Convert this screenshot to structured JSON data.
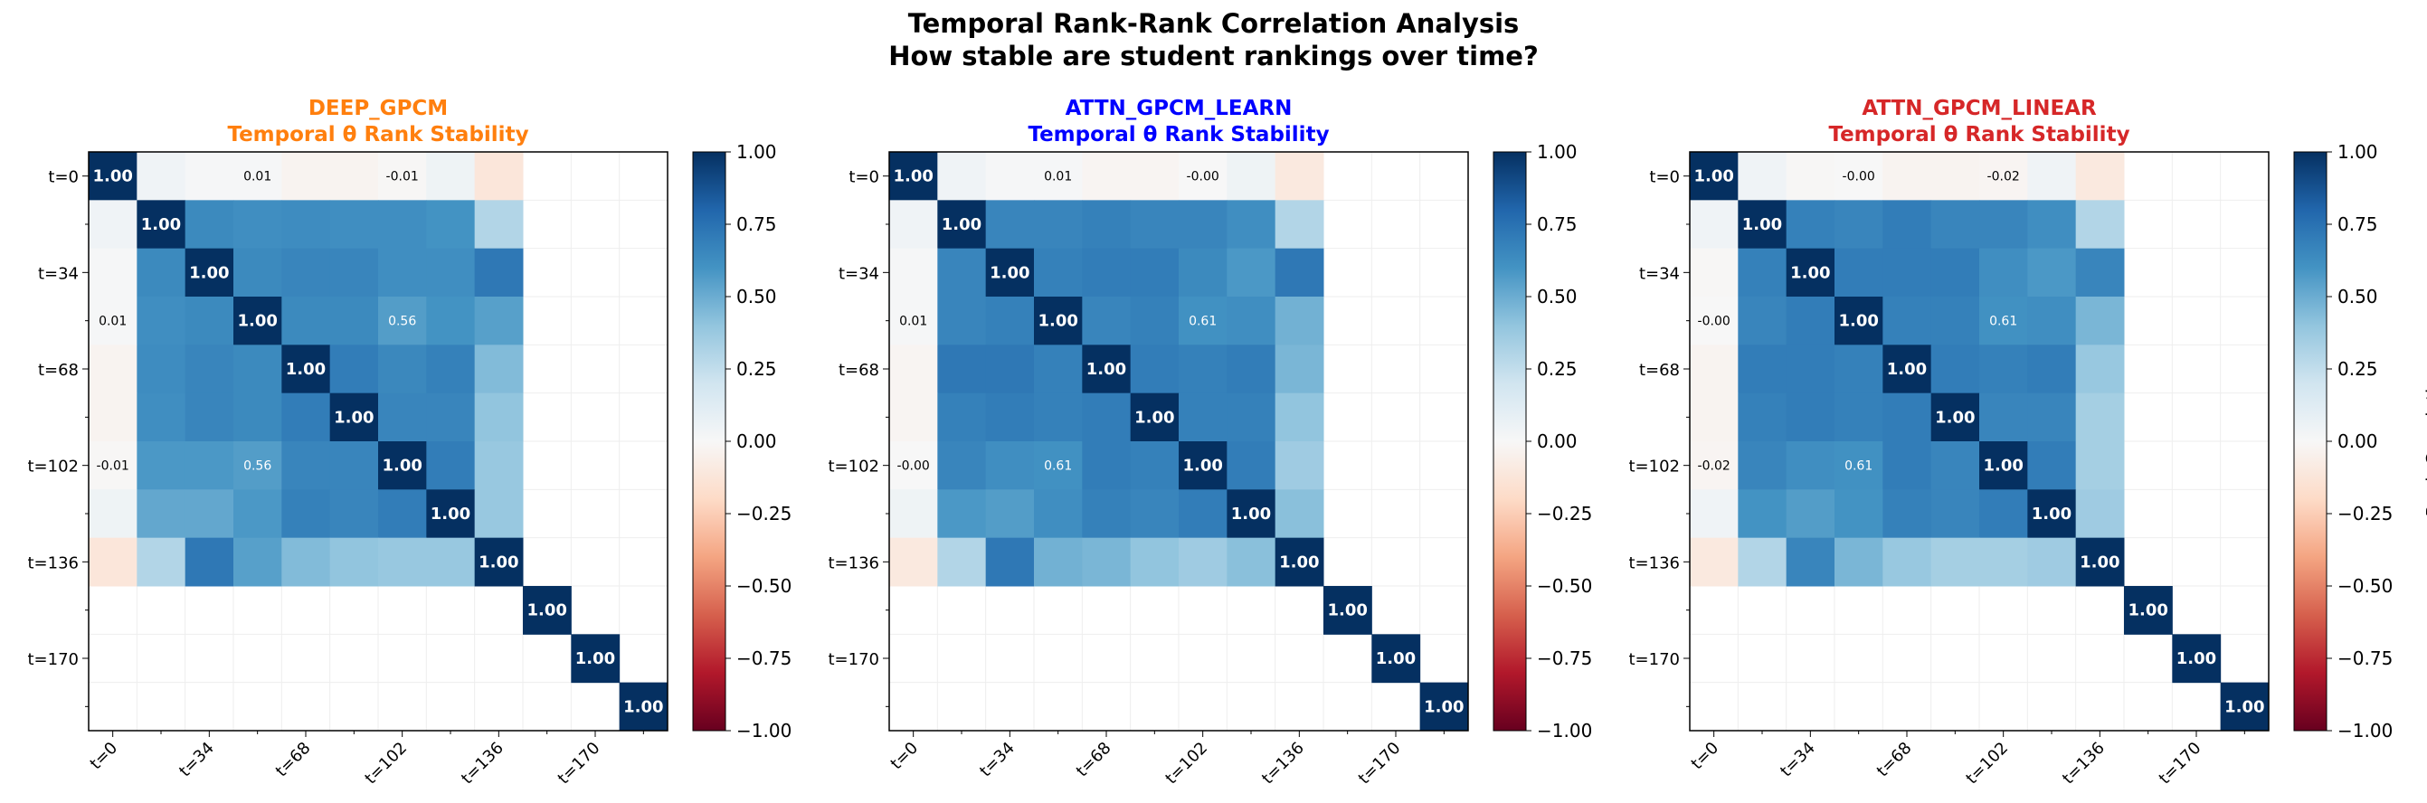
{
  "suptitle": {
    "line1": "Temporal Rank-Rank Correlation Analysis",
    "line2": "How stable are student rankings over time?"
  },
  "colorbar": {
    "ticks": [
      "1.00",
      "0.75",
      "0.50",
      "0.25",
      "0.00",
      "−0.25",
      "−0.50",
      "−0.75",
      "−1.00"
    ],
    "label": "Rank Correlation",
    "vmin": -1,
    "vmax": 1,
    "colormap": "RdBu"
  },
  "chart_data": [
    {
      "type": "heatmap",
      "title": "DEEP_GPCM",
      "subtitle": "Temporal θ Rank Stability",
      "title_color": "#ff7f0e",
      "ytick_labels": [
        "t=0",
        "t=34",
        "t=68",
        "t=102",
        "t=136",
        "t=170"
      ],
      "xtick_labels": [
        "t=0",
        "t=34",
        "t=68",
        "t=102",
        "t=136",
        "t=170"
      ],
      "tick_indices": [
        0,
        2,
        4,
        6,
        8,
        10
      ],
      "vmin": -1,
      "vmax": 1,
      "matrix": [
        [
          1.0,
          0.04,
          0.01,
          0.01,
          -0.03,
          -0.03,
          -0.01,
          0.05,
          -0.12,
          null,
          null,
          null
        ],
        [
          0.04,
          1.0,
          0.64,
          0.62,
          0.63,
          0.62,
          0.62,
          0.6,
          0.3,
          null,
          null,
          null
        ],
        [
          0.01,
          0.64,
          1.0,
          0.64,
          0.66,
          0.66,
          0.62,
          0.62,
          0.72,
          null,
          null,
          null
        ],
        [
          0.01,
          0.62,
          0.64,
          1.0,
          0.64,
          0.64,
          0.56,
          0.6,
          0.55,
          null,
          null,
          null
        ],
        [
          -0.03,
          0.63,
          0.66,
          0.64,
          1.0,
          0.7,
          0.65,
          0.68,
          0.44,
          null,
          null,
          null
        ],
        [
          -0.03,
          0.62,
          0.66,
          0.64,
          0.7,
          1.0,
          0.66,
          0.66,
          0.4,
          null,
          null,
          null
        ],
        [
          -0.01,
          0.58,
          0.58,
          0.56,
          0.66,
          0.66,
          1.0,
          0.7,
          0.38,
          null,
          null,
          null
        ],
        [
          0.05,
          0.52,
          0.52,
          0.58,
          0.68,
          0.66,
          0.7,
          1.0,
          0.38,
          null,
          null,
          null
        ],
        [
          -0.12,
          0.3,
          0.72,
          0.55,
          0.44,
          0.4,
          0.38,
          0.38,
          1.0,
          null,
          null,
          null
        ],
        [
          null,
          null,
          null,
          null,
          null,
          null,
          null,
          null,
          null,
          1.0,
          null,
          null
        ],
        [
          null,
          null,
          null,
          null,
          null,
          null,
          null,
          null,
          null,
          null,
          1.0,
          null
        ],
        [
          null,
          null,
          null,
          null,
          null,
          null,
          null,
          null,
          null,
          null,
          null,
          1.0
        ]
      ],
      "annotated_cells": [
        [
          0,
          0
        ],
        [
          1,
          1
        ],
        [
          2,
          2
        ],
        [
          3,
          3
        ],
        [
          4,
          4
        ],
        [
          5,
          5
        ],
        [
          6,
          6
        ],
        [
          7,
          7
        ],
        [
          8,
          8
        ],
        [
          9,
          9
        ],
        [
          10,
          10
        ],
        [
          11,
          11
        ],
        [
          0,
          3
        ],
        [
          0,
          6
        ],
        [
          3,
          0
        ],
        [
          6,
          0
        ],
        [
          3,
          6
        ],
        [
          6,
          3
        ]
      ]
    },
    {
      "type": "heatmap",
      "title": "ATTN_GPCM_LEARN",
      "subtitle": "Temporal θ Rank Stability",
      "title_color": "#0000ff",
      "ytick_labels": [
        "t=0",
        "t=34",
        "t=68",
        "t=102",
        "t=136",
        "t=170"
      ],
      "xtick_labels": [
        "t=0",
        "t=34",
        "t=68",
        "t=102",
        "t=136",
        "t=170"
      ],
      "tick_indices": [
        0,
        2,
        4,
        6,
        8,
        10
      ],
      "vmin": -1,
      "vmax": 1,
      "matrix": [
        [
          1.0,
          0.04,
          0.01,
          0.01,
          -0.02,
          -0.02,
          -0.0,
          0.05,
          -0.1,
          null,
          null,
          null
        ],
        [
          0.04,
          1.0,
          0.66,
          0.66,
          0.68,
          0.66,
          0.66,
          0.62,
          0.3,
          null,
          null,
          null
        ],
        [
          0.01,
          0.66,
          1.0,
          0.68,
          0.7,
          0.7,
          0.64,
          0.58,
          0.72,
          null,
          null,
          null
        ],
        [
          0.01,
          0.66,
          0.68,
          1.0,
          0.66,
          0.68,
          0.61,
          0.62,
          0.48,
          null,
          null,
          null
        ],
        [
          -0.02,
          0.72,
          0.72,
          0.68,
          1.0,
          0.7,
          0.68,
          0.7,
          0.46,
          null,
          null,
          null
        ],
        [
          -0.02,
          0.68,
          0.7,
          0.68,
          0.7,
          1.0,
          0.68,
          0.68,
          0.4,
          null,
          null,
          null
        ],
        [
          -0.0,
          0.66,
          0.62,
          0.61,
          0.7,
          0.68,
          1.0,
          0.7,
          0.36,
          null,
          null,
          null
        ],
        [
          0.05,
          0.58,
          0.56,
          0.62,
          0.68,
          0.66,
          0.7,
          1.0,
          0.42,
          null,
          null,
          null
        ],
        [
          -0.1,
          0.3,
          0.72,
          0.48,
          0.46,
          0.4,
          0.36,
          0.42,
          1.0,
          null,
          null,
          null
        ],
        [
          null,
          null,
          null,
          null,
          null,
          null,
          null,
          null,
          null,
          1.0,
          null,
          null
        ],
        [
          null,
          null,
          null,
          null,
          null,
          null,
          null,
          null,
          null,
          null,
          1.0,
          null
        ],
        [
          null,
          null,
          null,
          null,
          null,
          null,
          null,
          null,
          null,
          null,
          null,
          1.0
        ]
      ],
      "annotated_cells": [
        [
          0,
          0
        ],
        [
          1,
          1
        ],
        [
          2,
          2
        ],
        [
          3,
          3
        ],
        [
          4,
          4
        ],
        [
          5,
          5
        ],
        [
          6,
          6
        ],
        [
          7,
          7
        ],
        [
          8,
          8
        ],
        [
          9,
          9
        ],
        [
          10,
          10
        ],
        [
          11,
          11
        ],
        [
          0,
          3
        ],
        [
          0,
          6
        ],
        [
          3,
          0
        ],
        [
          6,
          0
        ],
        [
          3,
          6
        ],
        [
          6,
          3
        ]
      ]
    },
    {
      "type": "heatmap",
      "title": "ATTN_GPCM_LINEAR",
      "subtitle": "Temporal θ Rank Stability",
      "title_color": "#d62728",
      "ytick_labels": [
        "t=0",
        "t=34",
        "t=68",
        "t=102",
        "t=136",
        "t=170"
      ],
      "xtick_labels": [
        "t=0",
        "t=34",
        "t=68",
        "t=102",
        "t=136",
        "t=170"
      ],
      "tick_indices": [
        0,
        2,
        4,
        6,
        8,
        10
      ],
      "vmin": -1,
      "vmax": 1,
      "matrix": [
        [
          1.0,
          0.04,
          -0.01,
          -0.0,
          -0.03,
          -0.03,
          -0.02,
          0.04,
          -0.1,
          null,
          null,
          null
        ],
        [
          0.04,
          1.0,
          0.68,
          0.66,
          0.7,
          0.66,
          0.66,
          0.62,
          0.3,
          null,
          null,
          null
        ],
        [
          -0.01,
          0.68,
          1.0,
          0.7,
          0.7,
          0.7,
          0.62,
          0.58,
          0.66,
          null,
          null,
          null
        ],
        [
          -0.0,
          0.66,
          0.7,
          1.0,
          0.68,
          0.68,
          0.61,
          0.62,
          0.46,
          null,
          null,
          null
        ],
        [
          -0.03,
          0.7,
          0.7,
          0.68,
          1.0,
          0.7,
          0.68,
          0.7,
          0.38,
          null,
          null,
          null
        ],
        [
          -0.03,
          0.68,
          0.7,
          0.68,
          0.7,
          1.0,
          0.66,
          0.66,
          0.34,
          null,
          null,
          null
        ],
        [
          -0.02,
          0.66,
          0.62,
          0.61,
          0.7,
          0.66,
          1.0,
          0.7,
          0.34,
          null,
          null,
          null
        ],
        [
          0.04,
          0.6,
          0.56,
          0.6,
          0.68,
          0.66,
          0.7,
          1.0,
          0.36,
          null,
          null,
          null
        ],
        [
          -0.1,
          0.3,
          0.66,
          0.46,
          0.38,
          0.34,
          0.34,
          0.36,
          1.0,
          null,
          null,
          null
        ],
        [
          null,
          null,
          null,
          null,
          null,
          null,
          null,
          null,
          null,
          1.0,
          null,
          null
        ],
        [
          null,
          null,
          null,
          null,
          null,
          null,
          null,
          null,
          null,
          null,
          1.0,
          null
        ],
        [
          null,
          null,
          null,
          null,
          null,
          null,
          null,
          null,
          null,
          null,
          null,
          1.0
        ]
      ],
      "annotated_cells": [
        [
          0,
          0
        ],
        [
          1,
          1
        ],
        [
          2,
          2
        ],
        [
          3,
          3
        ],
        [
          4,
          4
        ],
        [
          5,
          5
        ],
        [
          6,
          6
        ],
        [
          7,
          7
        ],
        [
          8,
          8
        ],
        [
          9,
          9
        ],
        [
          10,
          10
        ],
        [
          11,
          11
        ],
        [
          0,
          3
        ],
        [
          0,
          6
        ],
        [
          3,
          0
        ],
        [
          6,
          0
        ],
        [
          3,
          6
        ],
        [
          6,
          3
        ]
      ]
    }
  ]
}
